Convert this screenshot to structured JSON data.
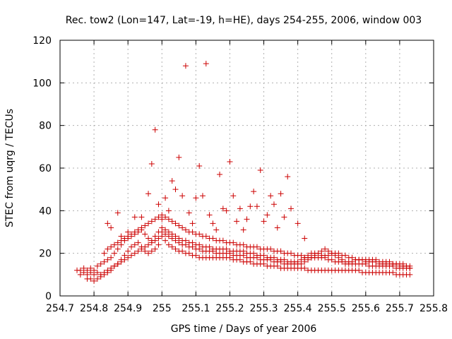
{
  "chart_data": {
    "type": "scatter",
    "title": "Rec. tow2 (Lon=147, Lat=-19, h=HE), days 254-255, 2006, window 003",
    "xlabel": "GPS time / Days of year 2006",
    "ylabel": "STEC from uqrg / TECUs",
    "xlim": [
      254.7,
      255.8
    ],
    "ylim": [
      0,
      120
    ],
    "xticks": [
      "254.7",
      "254.8",
      "254.9",
      "255",
      "255.1",
      "255.2",
      "255.3",
      "255.4",
      "255.5",
      "255.6",
      "255.7",
      "255.8"
    ],
    "yticks": [
      "0",
      "20",
      "40",
      "60",
      "80",
      "100",
      "120"
    ],
    "grid": true,
    "legend": "none",
    "marker": "plus",
    "color": "#cc0000",
    "series": [
      {
        "x": [
          254.76,
          254.77,
          254.78,
          254.79,
          254.8,
          254.81,
          254.82,
          254.83,
          254.84,
          254.85,
          254.86,
          254.87,
          254.88,
          254.89,
          254.9,
          254.91,
          254.92,
          254.93,
          254.94,
          254.95,
          254.96,
          254.97,
          254.98,
          254.99,
          255.0,
          255.01,
          255.02,
          255.03,
          255.04,
          255.05,
          255.06,
          255.07,
          255.08,
          255.09,
          255.1,
          255.11,
          255.12,
          255.13,
          255.14,
          255.15,
          255.16,
          255.17,
          255.18,
          255.19,
          255.2,
          255.21,
          255.22,
          255.23,
          255.24,
          255.25,
          255.26,
          255.27,
          255.28,
          255.29,
          255.3,
          255.31,
          255.32,
          255.33,
          255.34,
          255.35,
          255.36,
          255.37,
          255.38,
          255.39,
          255.4,
          255.41,
          255.42,
          255.43,
          255.44,
          255.45,
          255.46,
          255.47,
          255.48,
          255.49,
          255.5,
          255.51,
          255.52,
          255.53,
          255.54,
          255.55,
          255.56,
          255.57,
          255.58,
          255.59,
          255.6,
          255.61,
          255.62,
          255.63,
          255.64,
          255.65,
          255.66,
          255.67,
          255.68,
          255.69,
          255.7,
          255.71,
          255.72,
          255.73
        ],
        "y": [
          10,
          11,
          10,
          11,
          10,
          11,
          10,
          11,
          12,
          13,
          14,
          15,
          17,
          19,
          21,
          23,
          24,
          25,
          23,
          21,
          20,
          21,
          22,
          24,
          28,
          26,
          24,
          23,
          22,
          21,
          21,
          20,
          20,
          19,
          19,
          18,
          18,
          18,
          18,
          18,
          18,
          18,
          18,
          18,
          18,
          17,
          17,
          17,
          16,
          16,
          16,
          15,
          15,
          15,
          15,
          14,
          14,
          14,
          14,
          13,
          13,
          13,
          13,
          13,
          13,
          13,
          13,
          12,
          12,
          12,
          12,
          12,
          12,
          12,
          12,
          12,
          12,
          12,
          12,
          12,
          12,
          12,
          12,
          11,
          11,
          11,
          11,
          11,
          11,
          11,
          11,
          11,
          11,
          10,
          10,
          10,
          10,
          10
        ]
      },
      {
        "x": [
          254.75,
          254.76,
          254.77,
          254.78,
          254.79,
          254.8,
          254.81,
          254.82,
          254.83,
          254.84,
          254.85,
          254.86,
          254.87,
          254.88,
          254.89,
          254.9,
          254.91,
          254.92,
          254.93,
          254.94,
          254.95,
          254.96,
          254.97,
          254.98,
          254.99,
          255.0,
          255.01,
          255.02,
          255.03,
          255.04,
          255.05,
          255.06,
          255.07,
          255.08,
          255.09,
          255.1,
          255.11,
          255.12,
          255.13,
          255.14,
          255.15,
          255.16,
          255.17,
          255.18,
          255.19,
          255.2,
          255.21,
          255.22,
          255.23,
          255.24,
          255.25,
          255.26,
          255.27,
          255.28,
          255.29,
          255.3,
          255.31,
          255.32,
          255.33,
          255.34,
          255.35,
          255.36,
          255.37,
          255.38,
          255.39,
          255.4,
          255.41,
          255.42,
          255.43,
          255.44,
          255.45,
          255.46,
          255.47,
          255.48,
          255.49,
          255.5,
          255.51,
          255.52,
          255.53,
          255.54,
          255.55,
          255.56,
          255.57,
          255.58,
          255.59,
          255.6,
          255.61,
          255.62,
          255.63,
          255.64,
          255.65,
          255.66,
          255.67,
          255.68,
          255.69,
          255.7,
          255.71,
          255.72,
          255.73
        ],
        "y": [
          12,
          12,
          13,
          12,
          13,
          12,
          14,
          15,
          16,
          17,
          18,
          20,
          22,
          24,
          26,
          27,
          28,
          29,
          30,
          31,
          29,
          27,
          26,
          28,
          30,
          32,
          31,
          30,
          29,
          28,
          27,
          26,
          26,
          25,
          25,
          24,
          24,
          23,
          23,
          23,
          22,
          22,
          22,
          22,
          22,
          21,
          21,
          21,
          21,
          21,
          20,
          20,
          20,
          19,
          19,
          19,
          18,
          18,
          18,
          17,
          17,
          17,
          16,
          16,
          16,
          16,
          17,
          18,
          19,
          20,
          20,
          20,
          19,
          18,
          17,
          17,
          16,
          16,
          16,
          15,
          15,
          15,
          15,
          15,
          15,
          15,
          14,
          14,
          14,
          14,
          14,
          14,
          14,
          14,
          13,
          13,
          13,
          13,
          13
        ]
      },
      {
        "x": [
          254.78,
          254.79,
          254.8,
          254.81,
          254.82,
          254.83,
          254.84,
          254.85,
          254.86,
          254.87,
          254.88,
          254.89,
          254.9,
          254.91,
          254.92,
          254.93,
          254.94,
          254.95,
          254.96,
          254.97,
          254.98,
          254.99,
          255.0,
          255.01,
          255.02,
          255.03,
          255.04,
          255.05,
          255.06,
          255.07,
          255.08,
          255.09,
          255.1,
          255.11,
          255.12,
          255.13,
          255.14,
          255.15,
          255.16,
          255.17,
          255.18,
          255.19,
          255.2,
          255.21,
          255.22,
          255.23,
          255.24,
          255.25,
          255.26,
          255.27,
          255.28,
          255.29,
          255.3,
          255.31,
          255.32,
          255.33,
          255.34,
          255.35,
          255.36,
          255.37,
          255.38,
          255.39,
          255.4,
          255.41,
          255.42,
          255.43,
          255.44,
          255.45,
          255.46,
          255.47,
          255.48,
          255.49,
          255.5,
          255.51,
          255.52,
          255.53,
          255.54,
          255.55,
          255.56,
          255.57,
          255.58,
          255.59,
          255.6,
          255.61,
          255.62,
          255.63,
          255.64,
          255.65,
          255.66,
          255.67,
          255.68,
          255.69,
          255.7,
          255.71,
          255.72,
          255.73
        ],
        "y": [
          8,
          8,
          7,
          8,
          9,
          10,
          11,
          12,
          14,
          15,
          16,
          17,
          18,
          19,
          20,
          21,
          22,
          23,
          24,
          25,
          26,
          27,
          30,
          29,
          28,
          27,
          26,
          25,
          24,
          24,
          23,
          23,
          22,
          22,
          21,
          21,
          21,
          21,
          20,
          20,
          20,
          20,
          20,
          19,
          19,
          19,
          19,
          18,
          18,
          18,
          18,
          17,
          17,
          17,
          17,
          16,
          16,
          16,
          15,
          15,
          15,
          15,
          15,
          15,
          16,
          17,
          18,
          19,
          20,
          21,
          22,
          21,
          20,
          19,
          18,
          17,
          16,
          16,
          16,
          17,
          17,
          17,
          17,
          17,
          17,
          17,
          16,
          16,
          16,
          16,
          15,
          15,
          15,
          15,
          14,
          14
        ]
      },
      {
        "x": [
          254.83,
          254.84,
          254.85,
          254.86,
          254.87,
          254.88,
          254.89,
          254.9,
          254.91,
          254.92,
          254.93,
          254.94,
          254.95,
          254.96,
          254.97,
          254.98,
          254.99,
          255.0,
          255.01,
          255.02,
          255.03,
          255.04,
          255.05,
          255.06,
          255.07,
          255.08,
          255.09,
          255.1,
          255.11,
          255.12,
          255.13,
          255.14,
          255.15,
          255.16,
          255.17,
          255.18,
          255.19,
          255.2,
          255.21,
          255.22,
          255.23,
          255.24,
          255.25,
          255.26,
          255.27,
          255.28,
          255.29,
          255.3,
          255.31,
          255.32,
          255.33,
          255.34,
          255.35,
          255.36,
          255.37,
          255.38,
          255.39,
          255.4,
          255.41,
          255.42,
          255.43,
          255.44,
          255.45,
          255.46,
          255.47,
          255.48,
          255.49,
          255.5,
          255.51,
          255.52,
          255.53,
          255.54,
          255.55,
          255.56,
          255.57,
          255.58,
          255.59,
          255.6,
          255.61,
          255.62,
          255.63,
          255.64,
          255.65,
          255.66,
          255.67,
          255.68,
          255.69,
          255.7,
          255.71,
          255.72,
          255.73
        ],
        "y": [
          20,
          22,
          23,
          24,
          25,
          26,
          27,
          28,
          29,
          30,
          31,
          32,
          33,
          34,
          35,
          36,
          37,
          38,
          37,
          36,
          35,
          34,
          33,
          32,
          31,
          30,
          30,
          29,
          29,
          28,
          28,
          27,
          27,
          26,
          26,
          26,
          25,
          25,
          25,
          24,
          24,
          24,
          23,
          23,
          23,
          23,
          22,
          22,
          22,
          22,
          21,
          21,
          21,
          20,
          20,
          20,
          19,
          19,
          19,
          18,
          18,
          18,
          18,
          18,
          18,
          19,
          19,
          20,
          20,
          20,
          19,
          19,
          18,
          18,
          17,
          17,
          17,
          16,
          16,
          16,
          16,
          15,
          15,
          15,
          15,
          15,
          15,
          14,
          14,
          14,
          13
        ]
      },
      {
        "x": [
          254.84,
          254.85,
          254.87,
          254.88,
          254.9,
          254.92,
          254.94,
          254.96,
          254.97,
          254.98,
          254.99,
          255.0,
          255.01,
          255.02,
          255.03,
          255.04,
          255.05,
          255.06,
          255.07,
          255.08,
          255.09,
          255.1,
          255.11,
          255.12,
          255.13,
          255.14,
          255.15,
          255.16,
          255.17,
          255.18,
          255.19,
          255.2,
          255.21,
          255.22,
          255.23,
          255.24,
          255.25,
          255.26,
          255.27,
          255.28,
          255.29,
          255.3,
          255.31,
          255.32,
          255.33,
          255.34,
          255.35,
          255.36,
          255.37,
          255.38,
          255.4,
          255.42
        ],
        "y": [
          34,
          32,
          39,
          28,
          30,
          37,
          37,
          48,
          62,
          78,
          43,
          36,
          46,
          40,
          54,
          50,
          65,
          47,
          108,
          39,
          34,
          46,
          61,
          47,
          109,
          38,
          34,
          31,
          57,
          41,
          40,
          63,
          47,
          35,
          41,
          31,
          36,
          42,
          49,
          42,
          59,
          35,
          38,
          47,
          43,
          32,
          48,
          37,
          56,
          41,
          34,
          27
        ]
      }
    ]
  }
}
